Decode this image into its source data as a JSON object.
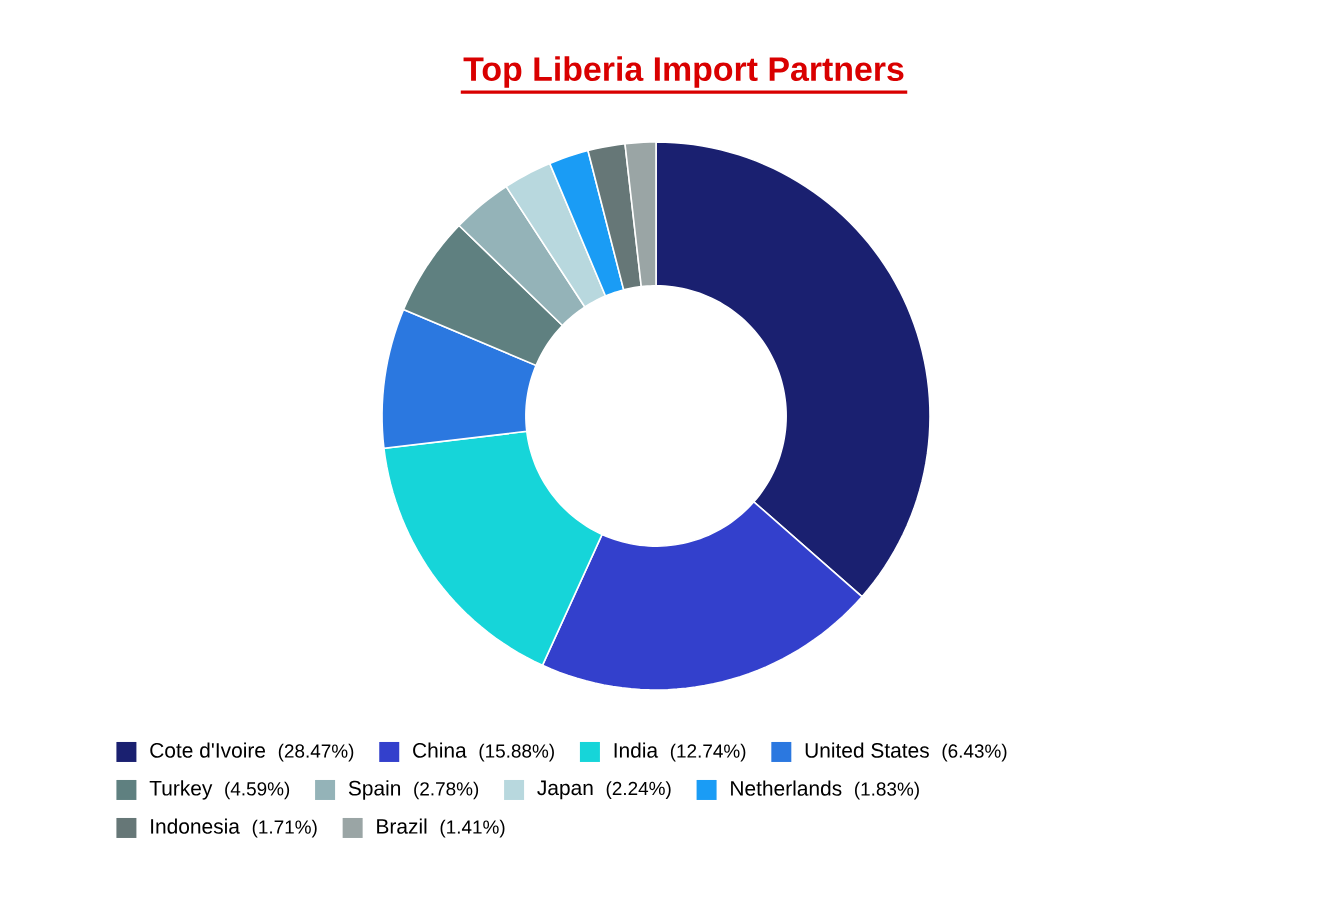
{
  "chart_data": {
    "type": "donut",
    "title": "Top Liberia Import Partners",
    "categories": [
      "Cote d'Ivoire",
      "China",
      "India",
      "United States",
      "Turkey",
      "Spain",
      "Japan",
      "Netherlands",
      "Indonesia",
      "Brazil"
    ],
    "values": [
      28.47,
      15.88,
      12.74,
      6.43,
      4.59,
      2.78,
      2.24,
      1.83,
      1.71,
      1.41
    ],
    "value_labels": [
      "(28.47%)",
      "(15.88%)",
      "(12.74%)",
      "(6.43%)",
      "(4.59%)",
      "(2.78%)",
      "(2.24%)",
      "(1.83%)",
      "(1.71%)",
      "(1.41%)"
    ],
    "colors": [
      "#1a2070",
      "#3340cc",
      "#16d5d9",
      "#2b78e0",
      "#5f8080",
      "#94b3b8",
      "#b8d8de",
      "#1a9cf5",
      "#667777",
      "#9aa5a5"
    ],
    "legend": "bottom"
  }
}
